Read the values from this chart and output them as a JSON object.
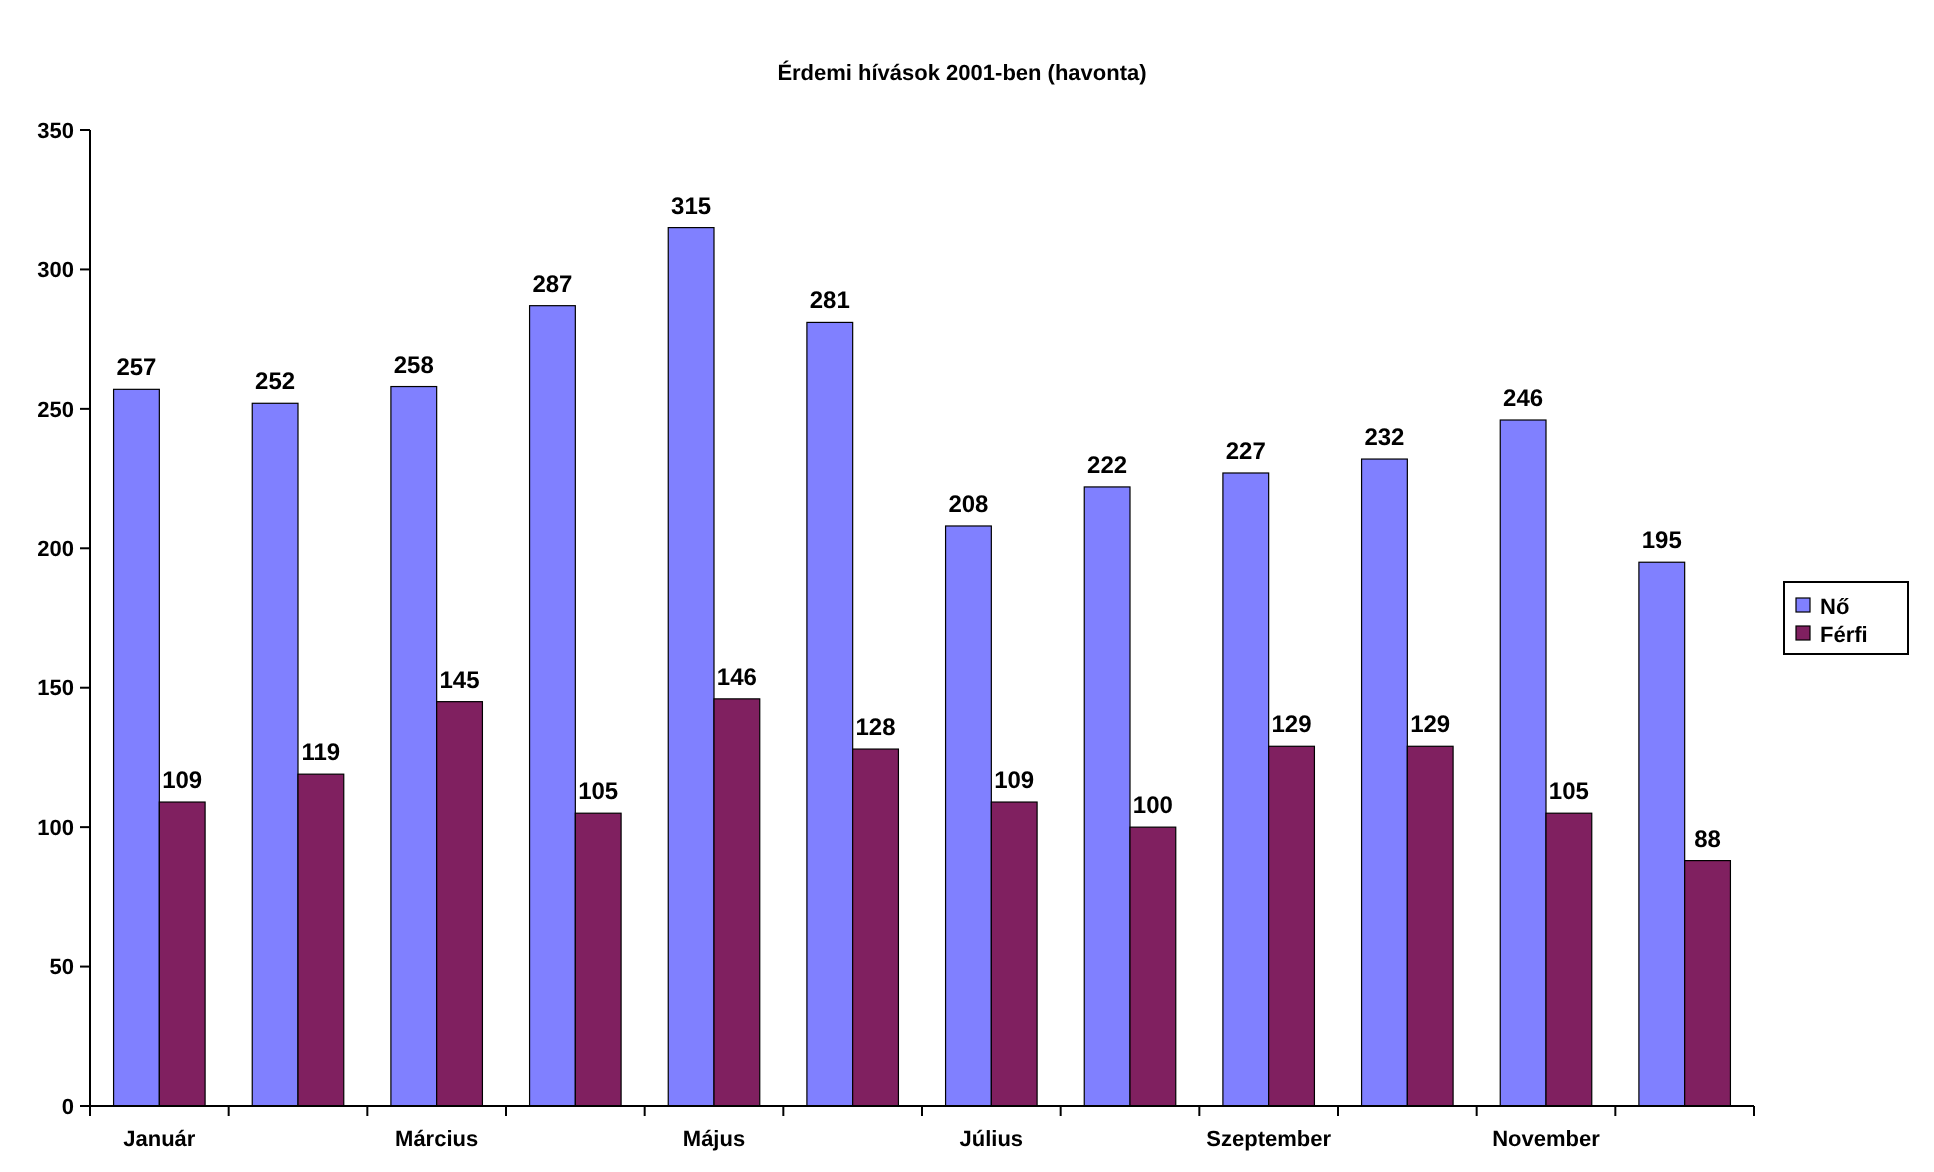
{
  "chart_data": {
    "type": "bar",
    "title": "Érdemi hívások 2001-ben (havonta)",
    "categories": [
      "Január",
      null,
      "Március",
      null,
      "Május",
      null,
      "Július",
      null,
      "Szeptember",
      null,
      "November",
      null
    ],
    "series": [
      {
        "name": "Nő",
        "color": "#8080ff",
        "values": [
          257,
          252,
          258,
          287,
          315,
          281,
          208,
          222,
          227,
          232,
          246,
          195
        ]
      },
      {
        "name": "Férfi",
        "color": "#802060",
        "values": [
          109,
          119,
          145,
          105,
          146,
          128,
          109,
          100,
          129,
          129,
          105,
          88
        ]
      }
    ],
    "ylim": [
      0,
      350
    ],
    "yticks": [
      0,
      50,
      100,
      150,
      200,
      250,
      300,
      350
    ],
    "grid": false,
    "legend": "right",
    "data_labels": true
  }
}
